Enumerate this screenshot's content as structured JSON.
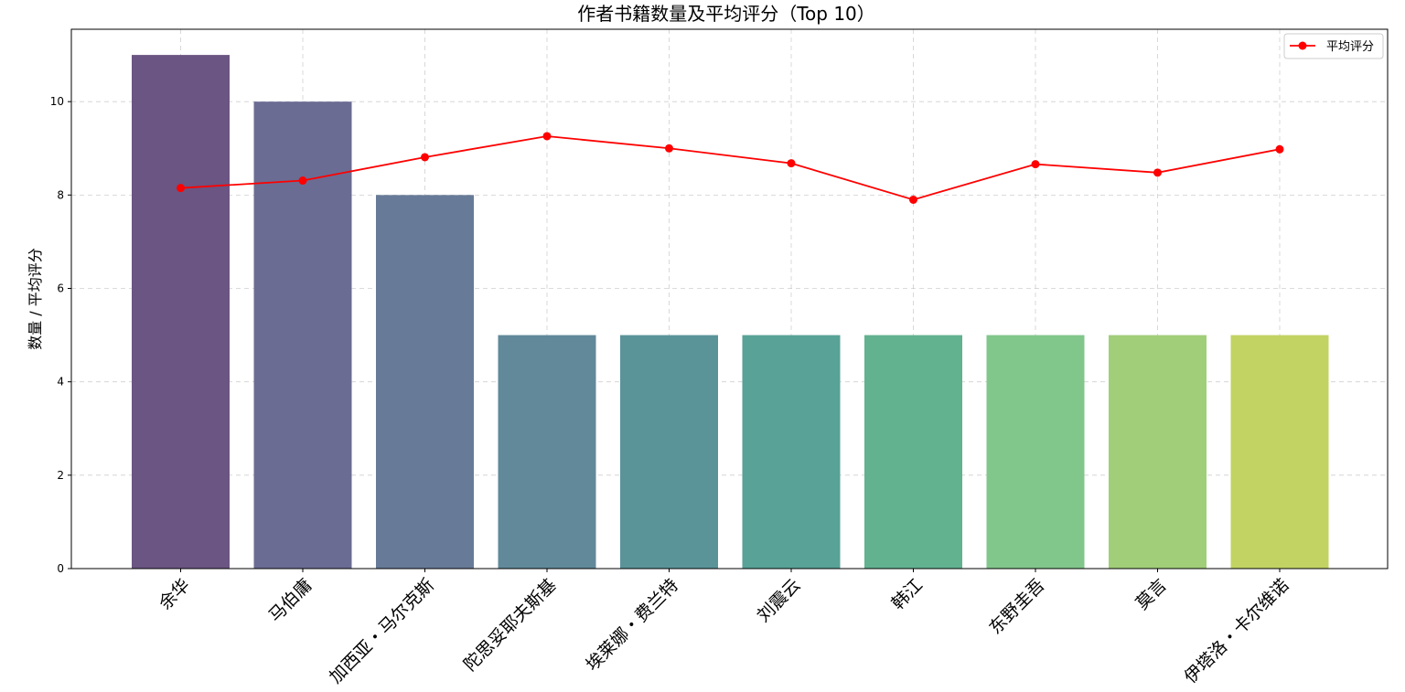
{
  "chart_data": {
    "type": "bar",
    "title": "作者书籍数量及平均评分（Top 10）",
    "xlabel": "",
    "ylabel": "数量 / 平均评分",
    "categories": [
      "余华",
      "马伯庸",
      "加西亚・马尔克斯",
      "陀思妥耶夫斯基",
      "埃莱娜・费兰特",
      "刘震云",
      "韩江",
      "东野圭吾",
      "莫言",
      "伊塔洛・卡尔维诺"
    ],
    "series": [
      {
        "type": "bar",
        "values": [
          11,
          10,
          8,
          5,
          5,
          5,
          5,
          5,
          5,
          5
        ],
        "colors": [
          "#6b5582",
          "#6b6c93",
          "#677b98",
          "#61899a",
          "#5a9499",
          "#58a297",
          "#62b290",
          "#81c68b",
          "#a0ce79",
          "#c2d363"
        ]
      },
      {
        "type": "line",
        "name": "平均评分",
        "values": [
          8.15,
          8.31,
          8.81,
          9.26,
          9.0,
          8.68,
          7.9,
          8.66,
          8.48,
          8.98
        ],
        "color": "#ff0000"
      }
    ],
    "ylim": [
      0,
      11.55
    ],
    "yticks": [
      "0",
      "2",
      "4",
      "6",
      "8",
      "10"
    ],
    "grid": true,
    "legend_position": "top-right"
  }
}
